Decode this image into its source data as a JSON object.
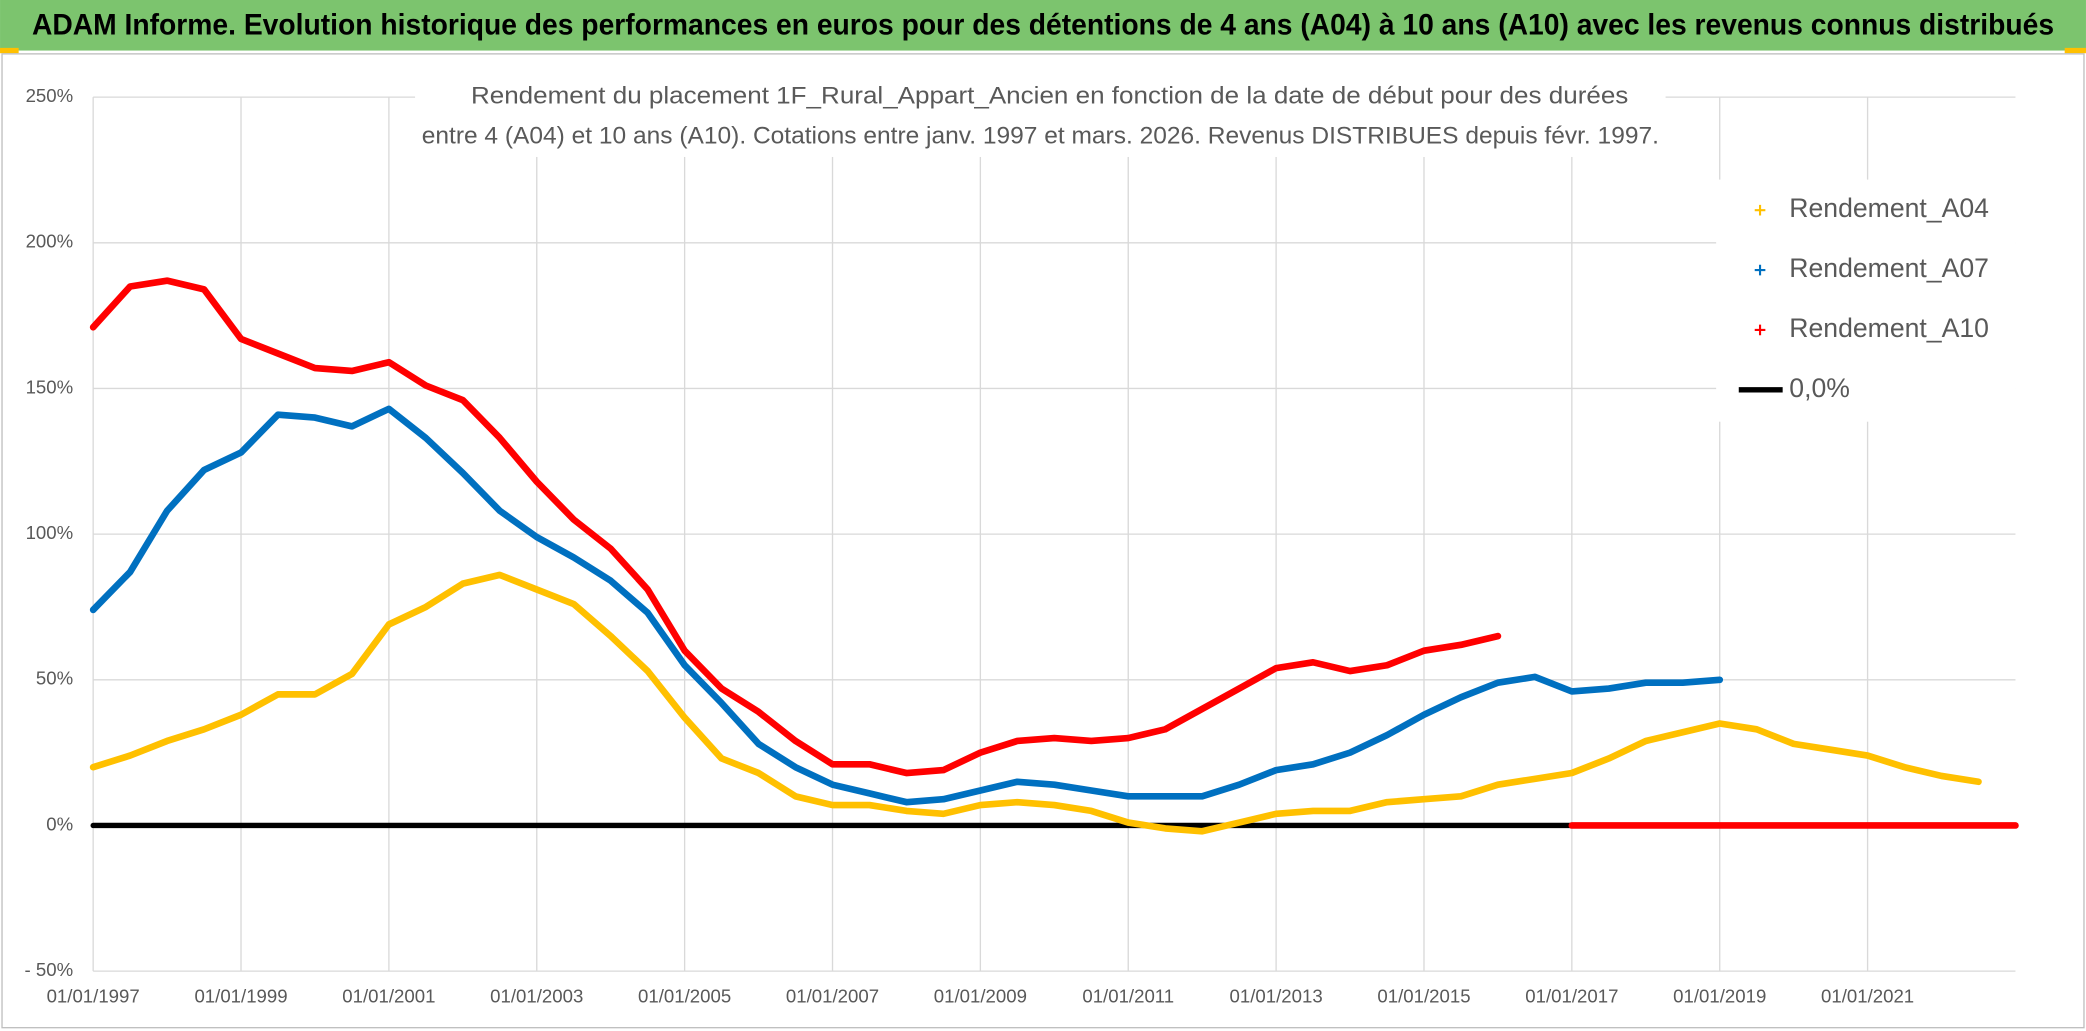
{
  "chart_data": {
    "type": "line",
    "title": "ADAM Informe. Evolution historique des performances en euros pour des détentions de 4 ans (A04) à 10 ans (A10) avec les revenus connus distribués",
    "subtitle": [
      "Rendement du placement 1F_Rural_Appart_Ancien en fonction de la date de début pour des durées",
      "entre 4 (A04) et 10 ans (A10). Cotations entre janv. 1997 et mars. 2026. Revenus DISTRIBUES depuis févr. 1997."
    ],
    "x": [
      "01/01/1997",
      "01/07/1997",
      "01/01/1998",
      "01/07/1998",
      "01/01/1999",
      "01/07/1999",
      "01/01/2000",
      "01/07/2000",
      "01/01/2001",
      "01/07/2001",
      "01/01/2002",
      "01/07/2002",
      "01/01/2003",
      "01/07/2003",
      "01/01/2004",
      "01/07/2004",
      "01/01/2005",
      "01/07/2005",
      "01/01/2006",
      "01/07/2006",
      "01/01/2007",
      "01/07/2007",
      "01/01/2008",
      "01/07/2008",
      "01/01/2009",
      "01/07/2009",
      "01/01/2010",
      "01/07/2010",
      "01/01/2011",
      "01/07/2011",
      "01/01/2012",
      "01/07/2012",
      "01/01/2013",
      "01/07/2013",
      "01/01/2014",
      "01/07/2014",
      "01/01/2015",
      "01/07/2015",
      "01/01/2016",
      "01/07/2016",
      "01/01/2017",
      "01/07/2017",
      "01/01/2018",
      "01/07/2018",
      "01/01/2019",
      "01/07/2019",
      "01/01/2020",
      "01/07/2020",
      "01/01/2021",
      "01/07/2021",
      "01/01/2022",
      "01/07/2022",
      "01/01/2023"
    ],
    "xlim": [
      "01/01/1997",
      "01/01/2023"
    ],
    "xticks": [
      "01/01/1997",
      "01/01/1999",
      "01/01/2001",
      "01/01/2003",
      "01/01/2005",
      "01/01/2007",
      "01/01/2009",
      "01/01/2011",
      "01/01/2013",
      "01/01/2015",
      "01/01/2017",
      "01/01/2019",
      "01/01/2021"
    ],
    "ylim": [
      -50,
      250
    ],
    "yticks": [
      {
        "value": -50,
        "label": "- 50%"
      },
      {
        "value": 0,
        "label": "0%"
      },
      {
        "value": 50,
        "label": "50%"
      },
      {
        "value": 100,
        "label": "100%"
      },
      {
        "value": 150,
        "label": "150%"
      },
      {
        "value": 200,
        "label": "200%"
      },
      {
        "value": 250,
        "label": "250%"
      }
    ],
    "grid": true,
    "legend": "upper right",
    "series": [
      {
        "name": "Rendement_A04",
        "color": "#ffc000",
        "marker": "+",
        "values": [
          20,
          24,
          29,
          33,
          38,
          45,
          45,
          52,
          69,
          75,
          83,
          86,
          81,
          76,
          65,
          53,
          37,
          23,
          18,
          10,
          7,
          7,
          5,
          4,
          7,
          8,
          7,
          5,
          1,
          -1,
          -2,
          1,
          4,
          5,
          5,
          8,
          9,
          10,
          14,
          16,
          18,
          23,
          29,
          32,
          35,
          33,
          28,
          26,
          24,
          20,
          17,
          15,
          null
        ]
      },
      {
        "name": "Rendement_A07",
        "color": "#0070c0",
        "marker": "+",
        "values": [
          74,
          87,
          108,
          122,
          128,
          141,
          140,
          137,
          143,
          133,
          121,
          108,
          99,
          92,
          84,
          73,
          55,
          42,
          28,
          20,
          14,
          11,
          8,
          9,
          12,
          15,
          14,
          12,
          10,
          10,
          10,
          14,
          19,
          21,
          25,
          31,
          38,
          44,
          49,
          51,
          46,
          47,
          49,
          49,
          50,
          null,
          null,
          null,
          null,
          null,
          null,
          null,
          null
        ]
      },
      {
        "name": "Rendement_A10",
        "color": "#ff0000",
        "marker": "+",
        "values": [
          171,
          185,
          187,
          184,
          167,
          162,
          157,
          156,
          159,
          151,
          146,
          133,
          118,
          105,
          95,
          81,
          60,
          47,
          39,
          29,
          21,
          21,
          18,
          19,
          25,
          29,
          30,
          29,
          30,
          33,
          40,
          47,
          54,
          56,
          53,
          55,
          60,
          62,
          65,
          null,
          0,
          0,
          0,
          0,
          0,
          0,
          0,
          0,
          0,
          0,
          0,
          0,
          0
        ]
      },
      {
        "name": "0,0%",
        "color": "#000000",
        "values": [
          0,
          0,
          0,
          0,
          0,
          0,
          0,
          0,
          0,
          0,
          0,
          0,
          0,
          0,
          0,
          0,
          0,
          0,
          0,
          0,
          0,
          0,
          0,
          0,
          0,
          0,
          0,
          0,
          0,
          0,
          0,
          0,
          0,
          0,
          0,
          0,
          0,
          0,
          0,
          0,
          0,
          0,
          0,
          0,
          0,
          0,
          0,
          0,
          0,
          0,
          0,
          0,
          0
        ]
      }
    ]
  }
}
